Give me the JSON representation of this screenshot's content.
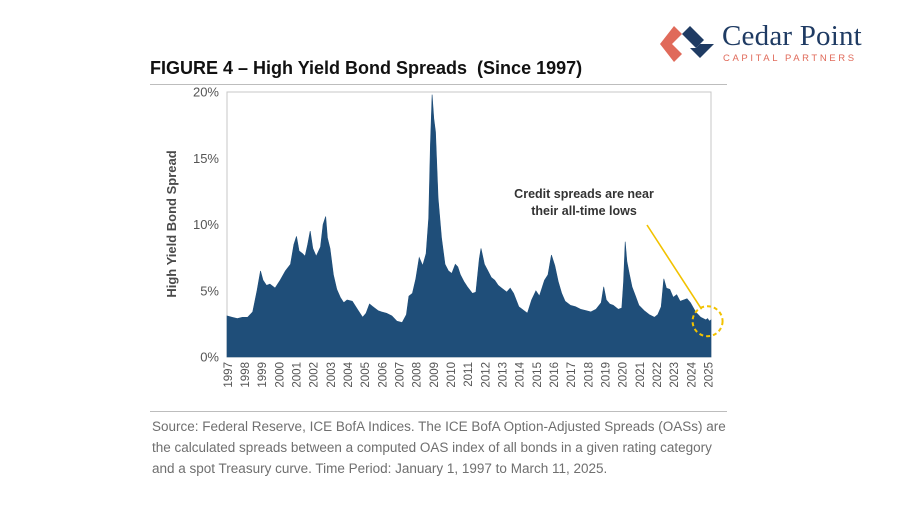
{
  "brand": {
    "name": "Cedar Point",
    "tagline": "CAPITAL PARTNERS",
    "colors": {
      "primary": "#1f3b63",
      "accent": "#e06a5a"
    }
  },
  "figure": {
    "title": "FIGURE 4 – High Yield Bond Spreads  (Since 1997)",
    "source": "Source: Federal Reserve, ICE BofA Indices. The ICE BofA Option-Adjusted Spreads (OASs) are the calculated spreads between a computed OAS index of all bonds in a given rating category and a spot Treasury curve. Time Period: January 1, 1997 to March 11, 2025."
  },
  "chart_data": {
    "type": "area",
    "ylabel": "High Yield Bond Spread",
    "xlabel": "",
    "ylim": [
      0,
      20
    ],
    "yticks": [
      "0%",
      "5%",
      "10%",
      "15%",
      "20%"
    ],
    "xlim": [
      1997.0,
      2025.2
    ],
    "xticks": [
      "1997",
      "1998",
      "1999",
      "2000",
      "2001",
      "2002",
      "2003",
      "2004",
      "2005",
      "2006",
      "2007",
      "2008",
      "2009",
      "2010",
      "2011",
      "2012",
      "2013",
      "2014",
      "2015",
      "2016",
      "2017",
      "2018",
      "2019",
      "2020",
      "2021",
      "2022",
      "2023",
      "2024",
      "2025"
    ],
    "grid": false,
    "fill_color": "#1f4e79",
    "annotation": {
      "text": [
        "Credit spreads are near",
        "their all-time lows"
      ],
      "target": {
        "x": 2025.0,
        "y": 2.7
      },
      "color": "#f2c200"
    },
    "series": [
      {
        "x": [
          1997.0,
          1997.3,
          1997.6,
          1997.9,
          1998.2,
          1998.5,
          1998.75,
          1998.95,
          1999.1,
          1999.3,
          1999.5,
          1999.8,
          2000.1,
          2000.4,
          2000.7,
          2000.9,
          2001.05,
          2001.2,
          2001.4,
          2001.55,
          2001.7,
          2001.85,
          2002.0,
          2002.2,
          2002.45,
          2002.6,
          2002.75,
          2002.85,
          2003.0,
          2003.2,
          2003.4,
          2003.6,
          2003.8,
          2004.0,
          2004.3,
          2004.6,
          2004.9,
          2005.1,
          2005.3,
          2005.5,
          2005.8,
          2006.0,
          2006.3,
          2006.6,
          2006.9,
          2007.2,
          2007.45,
          2007.6,
          2007.8,
          2008.0,
          2008.2,
          2008.4,
          2008.6,
          2008.75,
          2008.85,
          2008.95,
          2009.05,
          2009.15,
          2009.3,
          2009.5,
          2009.7,
          2009.9,
          2010.1,
          2010.3,
          2010.45,
          2010.6,
          2010.8,
          2011.0,
          2011.3,
          2011.5,
          2011.7,
          2011.8,
          2012.0,
          2012.2,
          2012.4,
          2012.6,
          2012.8,
          2013.0,
          2013.3,
          2013.5,
          2013.7,
          2014.0,
          2014.3,
          2014.5,
          2014.75,
          2015.0,
          2015.2,
          2015.5,
          2015.7,
          2015.9,
          2016.1,
          2016.3,
          2016.5,
          2016.7,
          2017.0,
          2017.3,
          2017.6,
          2017.9,
          2018.2,
          2018.5,
          2018.8,
          2018.95,
          2019.1,
          2019.3,
          2019.5,
          2019.8,
          2020.0,
          2020.1,
          2020.2,
          2020.3,
          2020.45,
          2020.6,
          2020.8,
          2021.0,
          2021.3,
          2021.6,
          2021.9,
          2022.1,
          2022.3,
          2022.45,
          2022.6,
          2022.8,
          2023.0,
          2023.2,
          2023.4,
          2023.6,
          2023.8,
          2024.0,
          2024.3,
          2024.6,
          2024.9,
          2025.0,
          2025.1,
          2025.2
        ],
        "y": [
          3.1,
          3.0,
          2.9,
          3.0,
          3.0,
          3.4,
          5.0,
          6.5,
          5.8,
          5.4,
          5.5,
          5.2,
          5.8,
          6.5,
          7.0,
          8.5,
          9.1,
          8.0,
          7.8,
          7.6,
          8.5,
          9.5,
          8.2,
          7.6,
          8.3,
          10.0,
          10.6,
          9.0,
          8.2,
          6.2,
          5.1,
          4.5,
          4.1,
          4.3,
          4.2,
          3.6,
          3.0,
          3.3,
          4.0,
          3.8,
          3.5,
          3.4,
          3.3,
          3.1,
          2.7,
          2.6,
          3.2,
          4.6,
          4.8,
          5.9,
          7.5,
          6.9,
          7.8,
          10.5,
          16.0,
          19.8,
          18.0,
          17.0,
          12.0,
          9.0,
          7.0,
          6.5,
          6.3,
          7.0,
          6.8,
          6.2,
          5.7,
          5.3,
          4.8,
          4.9,
          7.4,
          8.2,
          7.0,
          6.5,
          6.0,
          5.8,
          5.4,
          5.2,
          4.9,
          5.2,
          4.8,
          3.8,
          3.5,
          3.3,
          4.3,
          5.0,
          4.6,
          5.8,
          6.2,
          7.7,
          6.9,
          5.7,
          4.8,
          4.2,
          3.9,
          3.8,
          3.6,
          3.5,
          3.4,
          3.6,
          4.1,
          5.3,
          4.3,
          4.0,
          3.9,
          3.6,
          3.7,
          5.6,
          8.7,
          7.2,
          6.2,
          5.3,
          4.6,
          3.9,
          3.5,
          3.2,
          3.0,
          3.2,
          3.8,
          5.9,
          5.2,
          5.1,
          4.5,
          4.7,
          4.2,
          4.3,
          4.4,
          4.1,
          3.4,
          3.0,
          2.8,
          2.9,
          2.7,
          2.8
        ]
      }
    ]
  }
}
